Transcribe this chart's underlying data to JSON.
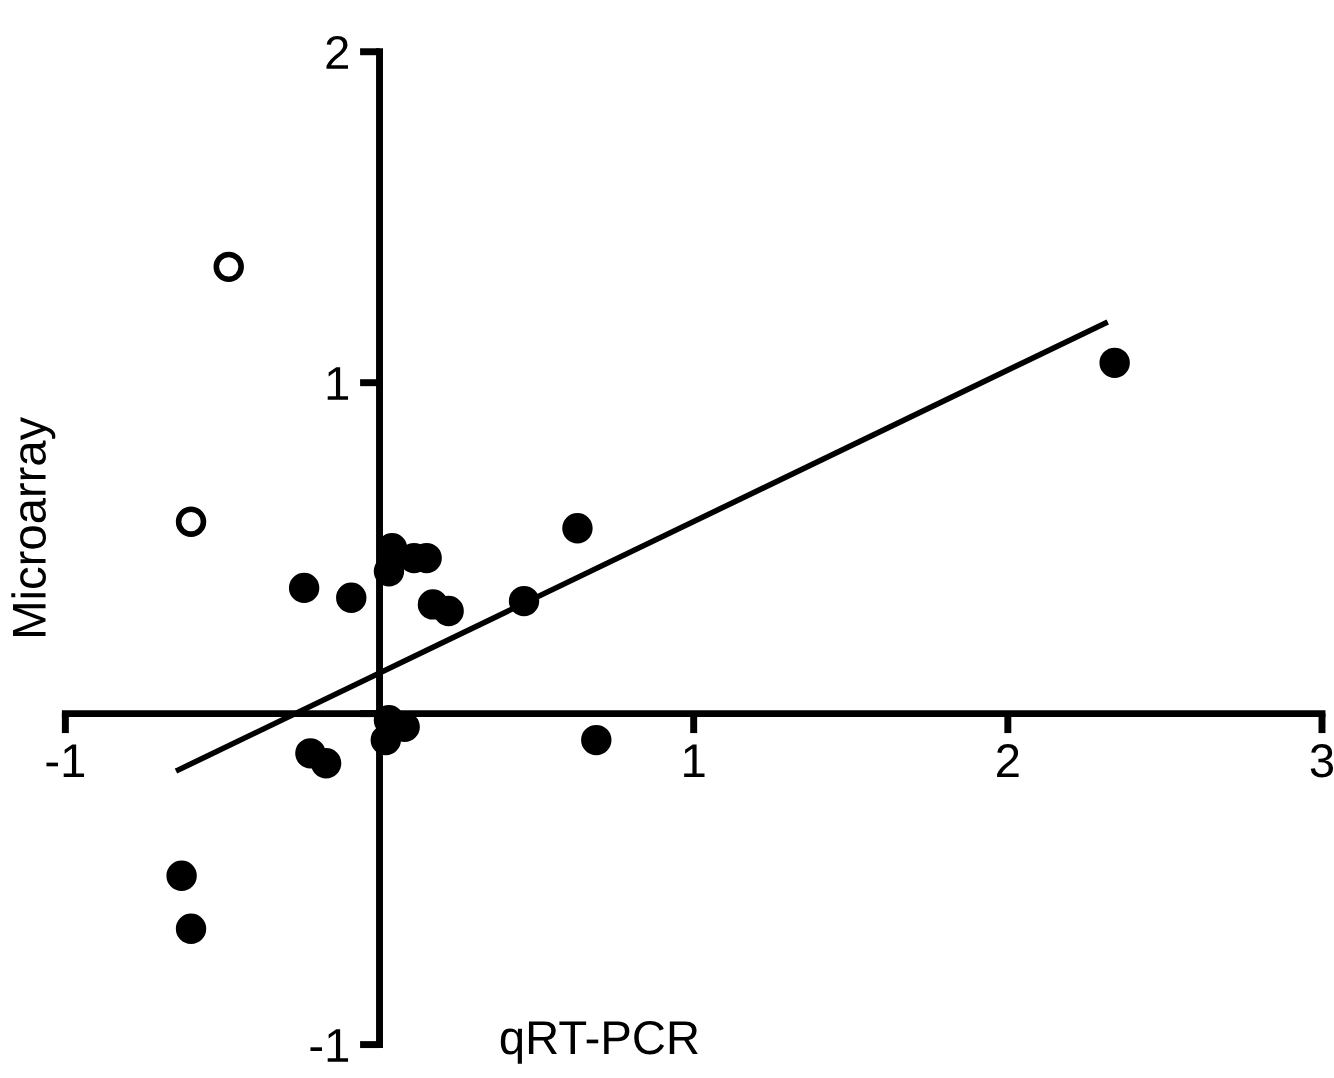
{
  "chart_data": {
    "type": "scatter",
    "xlabel": "qRT-PCR",
    "ylabel": "Microarray",
    "xlim": [
      -1,
      3
    ],
    "ylim": [
      -1,
      2
    ],
    "xticks": [
      -1,
      {
        "value": 0,
        "label": null
      },
      1,
      2,
      3
    ],
    "yticks": [
      -1,
      {
        "value": 0,
        "label": null
      },
      1,
      2
    ],
    "marker": "circle",
    "grid": false,
    "legend": false,
    "series": [
      {
        "color": "#000000",
        "x": [
          -0.24,
          -0.09,
          0.04,
          0.03,
          0.11,
          0.15,
          0.17,
          0.22,
          0.46,
          0.63,
          0.03,
          0.08,
          0.02,
          -0.22,
          -0.17,
          0.69,
          -0.63,
          -0.6,
          2.34
        ],
        "values": [
          0.38,
          0.35,
          0.5,
          0.43,
          0.47,
          0.47,
          0.33,
          0.31,
          0.34,
          0.56,
          -0.02,
          -0.04,
          -0.08,
          -0.12,
          -0.15,
          -0.08,
          -0.49,
          -0.65,
          1.06
        ]
      },
      {
        "color": "#ffffff",
        "x": [
          -0.48,
          -0.6
        ],
        "values": [
          1.35,
          0.58
        ]
      },
      {
        "type": "line",
        "color": "#000000",
        "line_style": "solid",
        "marker": "none",
        "x": [
          -0.64,
          2.31
        ],
        "values": [
          -0.17,
          1.18
        ]
      }
    ]
  }
}
